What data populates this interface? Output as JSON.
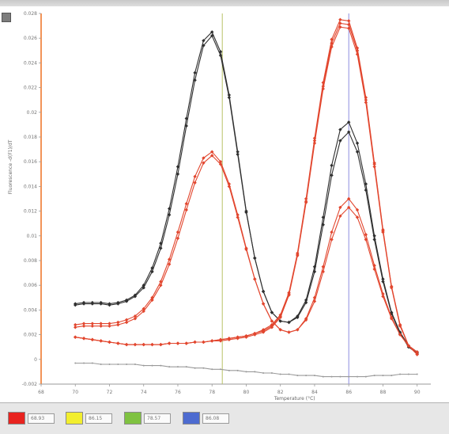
{
  "chart_data": {
    "type": "line",
    "title": "",
    "xlabel": "Temperature (°C)",
    "ylabel": "Fluorescence -d(F1)/dT",
    "xlim": [
      68,
      90.8
    ],
    "ylim": [
      -0.002,
      0.028
    ],
    "grid": false,
    "x_ticks": [
      68,
      70,
      72,
      74,
      76,
      78,
      80,
      82,
      84,
      86,
      88,
      90
    ],
    "y_ticks": [
      {
        "value": 0.028,
        "label": "0.028"
      },
      {
        "value": 0.026,
        "label": "0.026"
      },
      {
        "value": 0.024,
        "label": "0.024"
      },
      {
        "value": 0.022,
        "label": "0.022"
      },
      {
        "value": 0.02,
        "label": "0.02"
      },
      {
        "value": 0.018,
        "label": "0.018"
      },
      {
        "value": 0.016,
        "label": "0.016"
      },
      {
        "value": 0.014,
        "label": "0.014"
      },
      {
        "value": 0.012,
        "label": "0.012"
      },
      {
        "value": 0.01,
        "label": "0.01"
      },
      {
        "value": 0.008,
        "label": "0.008"
      },
      {
        "value": 0.006,
        "label": "0.006"
      },
      {
        "value": 0.004,
        "label": "0.004"
      },
      {
        "value": 0.002,
        "label": "0.002"
      },
      {
        "value": 0.0,
        "label": "0"
      },
      {
        "value": -0.002,
        "label": "-0.002"
      }
    ],
    "vertical_markers": [
      {
        "x": 78.6,
        "color": "#b8c266"
      },
      {
        "x": 86.0,
        "color": "#8e8ee0"
      }
    ],
    "series": [
      {
        "color": "#2f2f2f",
        "marker": "diamond",
        "x": [
          70.0,
          70.5,
          71.0,
          71.5,
          72.0,
          72.5,
          73.0,
          73.5,
          74.0,
          74.5,
          75.0,
          75.5,
          76.0,
          76.5,
          77.0,
          77.5,
          78.0,
          78.5,
          79.0,
          79.5,
          80.0,
          80.5,
          81.0,
          81.5,
          82.0,
          82.5,
          83.0,
          83.5,
          84.0,
          84.5,
          85.0,
          85.5,
          86.0,
          86.5,
          87.0,
          87.5,
          88.0,
          88.5,
          89.0,
          89.5,
          90.0
        ],
        "values": [
          0.0045,
          0.0046,
          0.0046,
          0.0046,
          0.0045,
          0.0046,
          0.0048,
          0.0052,
          0.006,
          0.0074,
          0.0094,
          0.0122,
          0.0156,
          0.0195,
          0.0232,
          0.0258,
          0.0265,
          0.0249,
          0.0214,
          0.0168,
          0.012,
          0.0082,
          0.0055,
          0.0038,
          0.0031,
          0.003,
          0.0035,
          0.0048,
          0.0075,
          0.0115,
          0.0157,
          0.0186,
          0.0192,
          0.0175,
          0.0142,
          0.01,
          0.0065,
          0.0038,
          0.0022,
          0.0011,
          0.0006
        ]
      },
      {
        "color": "#2f2f2f",
        "marker": "diamond",
        "x": [
          70.0,
          70.5,
          71.0,
          71.5,
          72.0,
          72.5,
          73.0,
          73.5,
          74.0,
          74.5,
          75.0,
          75.5,
          76.0,
          76.5,
          77.0,
          77.5,
          78.0,
          78.5,
          79.0,
          79.5,
          80.0,
          80.5,
          81.0,
          81.5,
          82.0,
          82.5,
          83.0,
          83.5,
          84.0,
          84.5,
          85.0,
          85.5,
          86.0,
          86.5,
          87.0,
          87.5,
          88.0,
          88.5,
          89.0,
          89.5,
          90.0
        ],
        "values": [
          0.0044,
          0.0045,
          0.0045,
          0.0045,
          0.0044,
          0.0045,
          0.0047,
          0.0051,
          0.0058,
          0.0071,
          0.009,
          0.0117,
          0.015,
          0.0189,
          0.0226,
          0.0254,
          0.0262,
          0.0246,
          0.0212,
          0.0166,
          0.0119,
          0.0082,
          0.0055,
          0.0038,
          0.0031,
          0.003,
          0.0034,
          0.0046,
          0.0071,
          0.0109,
          0.0149,
          0.0177,
          0.0184,
          0.0168,
          0.0137,
          0.0097,
          0.0063,
          0.0037,
          0.0021,
          0.001,
          0.0005
        ]
      },
      {
        "color": "#e2462e",
        "marker": "diamond",
        "x": [
          70.0,
          70.5,
          71.0,
          71.5,
          72.0,
          72.5,
          73.0,
          73.5,
          74.0,
          74.5,
          75.0,
          75.5,
          76.0,
          76.5,
          77.0,
          77.5,
          78.0,
          78.5,
          79.0,
          79.5,
          80.0,
          80.5,
          81.0,
          81.5,
          82.0,
          82.5,
          83.0,
          83.5,
          84.0,
          84.5,
          85.0,
          85.5,
          86.0,
          86.5,
          87.0,
          87.5,
          88.0,
          88.5,
          89.0,
          89.5,
          90.0
        ],
        "values": [
          0.0028,
          0.0029,
          0.0029,
          0.0029,
          0.0029,
          0.003,
          0.0032,
          0.0035,
          0.0041,
          0.005,
          0.0063,
          0.0081,
          0.0103,
          0.0126,
          0.0148,
          0.0163,
          0.0168,
          0.016,
          0.0142,
          0.0117,
          0.009,
          0.0065,
          0.0045,
          0.0031,
          0.0024,
          0.0022,
          0.0024,
          0.0033,
          0.005,
          0.0075,
          0.0103,
          0.0123,
          0.013,
          0.0121,
          0.0101,
          0.0076,
          0.0053,
          0.0034,
          0.002,
          0.0011,
          0.0006
        ]
      },
      {
        "color": "#e2462e",
        "marker": "diamond",
        "x": [
          70.0,
          70.5,
          71.0,
          71.5,
          72.0,
          72.5,
          73.0,
          73.5,
          74.0,
          74.5,
          75.0,
          75.5,
          76.0,
          76.5,
          77.0,
          77.5,
          78.0,
          78.5,
          79.0,
          79.5,
          80.0,
          80.5,
          81.0,
          81.5,
          82.0,
          82.5,
          83.0,
          83.5,
          84.0,
          84.5,
          85.0,
          85.5,
          86.0,
          86.5,
          87.0,
          87.5,
          88.0,
          88.5,
          89.0,
          89.5,
          90.0
        ],
        "values": [
          0.0026,
          0.0027,
          0.0027,
          0.0027,
          0.0027,
          0.0028,
          0.003,
          0.0033,
          0.0039,
          0.0048,
          0.006,
          0.0077,
          0.0098,
          0.0121,
          0.0143,
          0.0159,
          0.0165,
          0.0158,
          0.014,
          0.0115,
          0.0089,
          0.0065,
          0.0045,
          0.0031,
          0.0024,
          0.0022,
          0.0024,
          0.0032,
          0.0047,
          0.0071,
          0.0097,
          0.0116,
          0.0123,
          0.0115,
          0.0097,
          0.0073,
          0.0051,
          0.0033,
          0.002,
          0.0011,
          0.0006
        ]
      },
      {
        "color": "#e2462e",
        "marker": "diamond",
        "x": [
          70.0,
          70.5,
          71.0,
          71.5,
          72.0,
          72.5,
          73.0,
          73.5,
          74.0,
          74.5,
          75.0,
          75.5,
          76.0,
          76.5,
          77.0,
          77.5,
          78.0,
          78.5,
          79.0,
          79.5,
          80.0,
          80.5,
          81.0,
          81.5,
          82.0,
          82.5,
          83.0,
          83.5,
          84.0,
          84.5,
          85.0,
          85.5,
          86.0,
          86.5,
          87.0,
          87.5,
          88.0,
          88.5,
          89.0,
          89.5,
          90.0
        ],
        "values": [
          0.0018,
          0.0017,
          0.0016,
          0.0015,
          0.0014,
          0.0013,
          0.0012,
          0.0012,
          0.0012,
          0.0012,
          0.0012,
          0.0013,
          0.0013,
          0.0013,
          0.0014,
          0.0014,
          0.0015,
          0.0015,
          0.0016,
          0.0017,
          0.0018,
          0.002,
          0.0022,
          0.0026,
          0.0034,
          0.0052,
          0.0084,
          0.0127,
          0.0175,
          0.0219,
          0.0253,
          0.0269,
          0.0268,
          0.0247,
          0.0208,
          0.0156,
          0.0103,
          0.0058,
          0.0027,
          0.0011,
          0.0004
        ]
      },
      {
        "color": "#e2462e",
        "marker": "diamond",
        "x": [
          70.0,
          70.5,
          71.0,
          71.5,
          72.0,
          72.5,
          73.0,
          73.5,
          74.0,
          74.5,
          75.0,
          75.5,
          76.0,
          76.5,
          77.0,
          77.5,
          78.0,
          78.5,
          79.0,
          79.5,
          80.0,
          80.5,
          81.0,
          81.5,
          82.0,
          82.5,
          83.0,
          83.5,
          84.0,
          84.5,
          85.0,
          85.5,
          86.0,
          86.5,
          87.0,
          87.5,
          88.0,
          88.5,
          89.0,
          89.5,
          90.0
        ],
        "values": [
          0.0018,
          0.0017,
          0.0016,
          0.0015,
          0.0014,
          0.0013,
          0.0012,
          0.0012,
          0.0012,
          0.0012,
          0.0012,
          0.0013,
          0.0013,
          0.0013,
          0.0014,
          0.0014,
          0.0015,
          0.0016,
          0.0017,
          0.0018,
          0.0019,
          0.0021,
          0.0024,
          0.0028,
          0.0036,
          0.0054,
          0.0086,
          0.013,
          0.0179,
          0.0224,
          0.0259,
          0.0275,
          0.0274,
          0.0252,
          0.0212,
          0.0159,
          0.0105,
          0.0059,
          0.0028,
          0.0011,
          0.0004
        ]
      },
      {
        "color": "#e2462e",
        "marker": "diamond",
        "x": [
          70.0,
          70.5,
          71.0,
          71.5,
          72.0,
          72.5,
          73.0,
          73.5,
          74.0,
          74.5,
          75.0,
          75.5,
          76.0,
          76.5,
          77.0,
          77.5,
          78.0,
          78.5,
          79.0,
          79.5,
          80.0,
          80.5,
          81.0,
          81.5,
          82.0,
          82.5,
          83.0,
          83.5,
          84.0,
          84.5,
          85.0,
          85.5,
          86.0,
          86.5,
          87.0,
          87.5,
          88.0,
          88.5,
          89.0,
          89.5,
          90.0
        ],
        "values": [
          0.0018,
          0.0017,
          0.0016,
          0.0015,
          0.0014,
          0.0013,
          0.0012,
          0.0012,
          0.0012,
          0.0012,
          0.0012,
          0.0013,
          0.0013,
          0.0013,
          0.0014,
          0.0014,
          0.0015,
          0.0016,
          0.0017,
          0.0018,
          0.0019,
          0.0021,
          0.0023,
          0.0027,
          0.0035,
          0.0053,
          0.0085,
          0.0128,
          0.0177,
          0.0221,
          0.0256,
          0.0272,
          0.0271,
          0.025,
          0.021,
          0.0158,
          0.0104,
          0.0059,
          0.0028,
          0.0011,
          0.0004
        ]
      },
      {
        "color": "#9a9a9a",
        "marker": "dot",
        "x": [
          70.0,
          70.5,
          71.0,
          71.5,
          72.0,
          72.5,
          73.0,
          73.5,
          74.0,
          74.5,
          75.0,
          75.5,
          76.0,
          76.5,
          77.0,
          77.5,
          78.0,
          78.5,
          79.0,
          79.5,
          80.0,
          80.5,
          81.0,
          81.5,
          82.0,
          82.5,
          83.0,
          83.5,
          84.0,
          84.5,
          85.0,
          85.5,
          86.0,
          86.5,
          87.0,
          87.5,
          88.0,
          88.5,
          89.0,
          89.5,
          90.0
        ],
        "values": [
          -0.0003,
          -0.0003,
          -0.0003,
          -0.0004,
          -0.0004,
          -0.0004,
          -0.0004,
          -0.0004,
          -0.0005,
          -0.0005,
          -0.0005,
          -0.0006,
          -0.0006,
          -0.0006,
          -0.0007,
          -0.0007,
          -0.0008,
          -0.0008,
          -0.0009,
          -0.0009,
          -0.001,
          -0.001,
          -0.0011,
          -0.0011,
          -0.0012,
          -0.0012,
          -0.0013,
          -0.0013,
          -0.0013,
          -0.0014,
          -0.0014,
          -0.0014,
          -0.0014,
          -0.0014,
          -0.0014,
          -0.0013,
          -0.0013,
          -0.0013,
          -0.0012,
          -0.0012,
          -0.0012
        ]
      }
    ]
  },
  "legend": {
    "items": [
      {
        "color": "#e8231f",
        "value": "68.93"
      },
      {
        "color": "#f2ee2e",
        "value": "86.15"
      },
      {
        "color": "#7fc241",
        "value": "78.57"
      },
      {
        "color": "#4d6bd0",
        "value": "86.08"
      }
    ]
  }
}
